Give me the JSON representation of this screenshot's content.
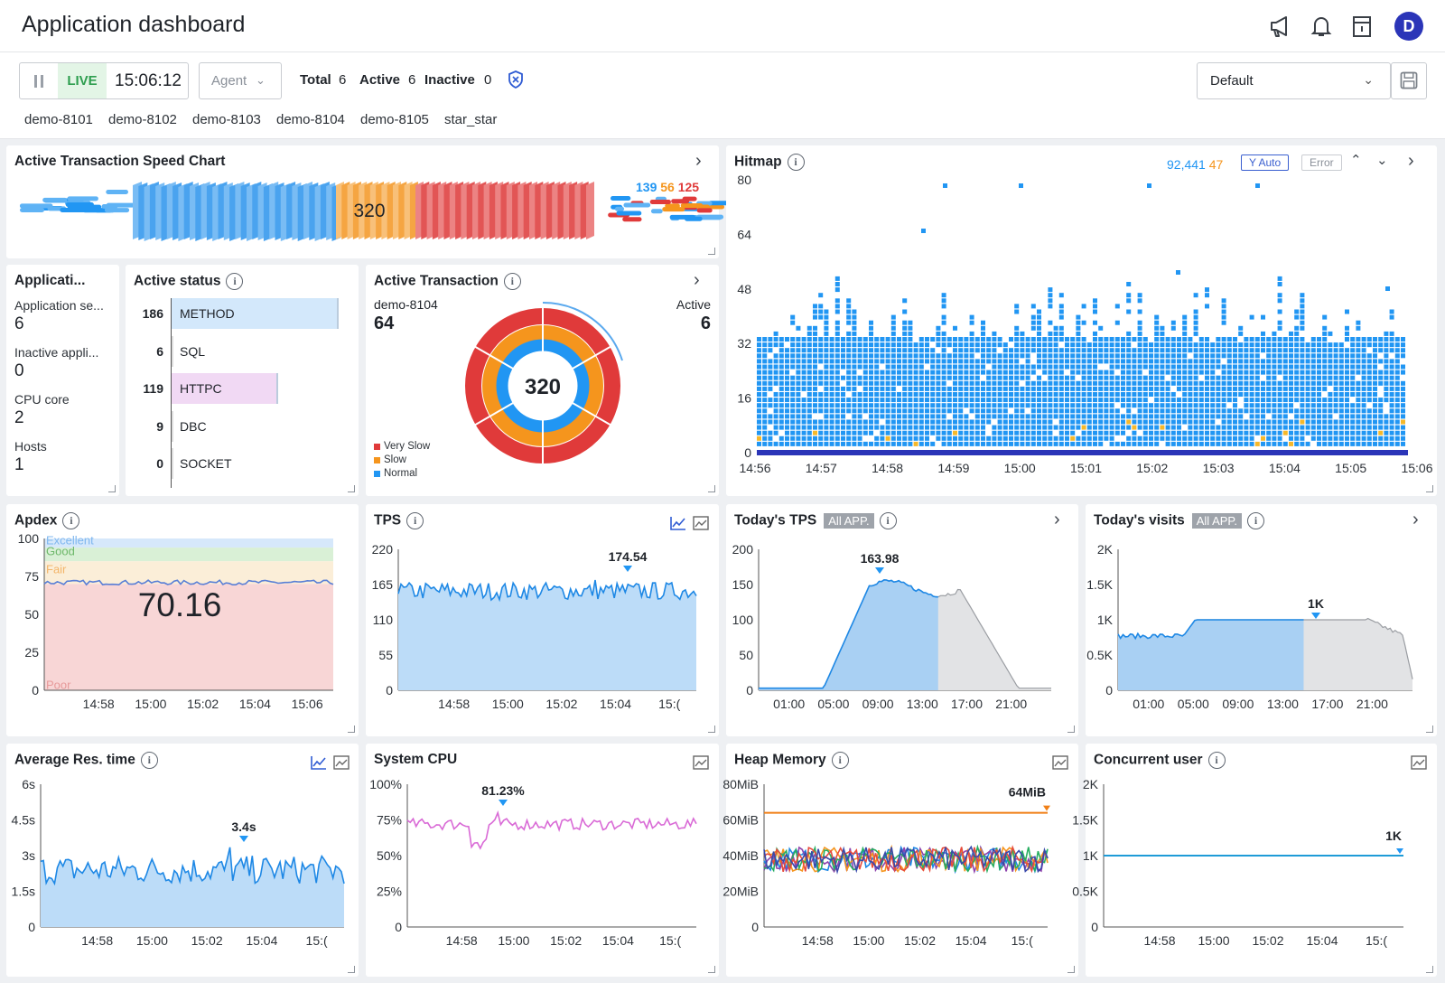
{
  "header": {
    "title": "Application dashboard",
    "avatar_letter": "D"
  },
  "toolbar": {
    "live_label": "LIVE",
    "time": "15:06:12",
    "agent_placeholder": "Agent",
    "total_label": "Total",
    "total": "6",
    "active_label": "Active",
    "active": "6",
    "inactive_label": "Inactive",
    "inactive": "0",
    "agents": [
      "demo-8101",
      "demo-8102",
      "demo-8103",
      "demo-8104",
      "demo-8105",
      "star_star"
    ],
    "preset": "Default"
  },
  "speed": {
    "title": "Active Transaction Speed Chart",
    "center": "320",
    "normal": "139",
    "slow": "56",
    "very_slow": "125"
  },
  "hitmap": {
    "title": "Hitmap",
    "count": "92,441",
    "error_count": "47",
    "yauto": "Y Auto",
    "error": "Error",
    "y_ticks": [
      "80",
      "64",
      "48",
      "32",
      "16",
      "0"
    ],
    "x_ticks": [
      "14:56",
      "14:57",
      "14:58",
      "14:59",
      "15:00",
      "15:01",
      "15:02",
      "15:03",
      "15:04",
      "15:05",
      "15:06"
    ]
  },
  "appinfo": {
    "title": "Applicati...",
    "items": [
      {
        "label": "Application se...",
        "value": "6"
      },
      {
        "label": "Inactive appli...",
        "value": "0"
      },
      {
        "label": "CPU core",
        "value": "2"
      },
      {
        "label": "Hosts",
        "value": "1"
      }
    ]
  },
  "status": {
    "title": "Active status",
    "rows": [
      {
        "value": "186",
        "label": "METHOD",
        "frac": 1.0,
        "color": "#d3e8fb"
      },
      {
        "value": "6",
        "label": "SQL",
        "frac": 0.0,
        "color": "#d9ecd8"
      },
      {
        "value": "119",
        "label": "HTTPC",
        "frac": 0.64,
        "color": "#f1d9f4"
      },
      {
        "value": "9",
        "label": "DBC",
        "frac": 0.0,
        "color": "#f9e3cf"
      },
      {
        "value": "0",
        "label": "SOCKET",
        "frac": 0.0,
        "color": "#eee"
      }
    ]
  },
  "activetx": {
    "title": "Active Transaction",
    "agent": "demo-8104",
    "agent_value": "64",
    "active_label": "Active",
    "active_value": "6",
    "center": "320",
    "legend": [
      {
        "label": "Very Slow",
        "color": "#e03a3a"
      },
      {
        "label": "Slow",
        "color": "#f5951d"
      },
      {
        "label": "Normal",
        "color": "#2196f3"
      }
    ]
  },
  "apdex": {
    "title": "Apdex",
    "value": "70.16",
    "bands": [
      "Excellent",
      "Good",
      "Fair",
      "Poor"
    ],
    "y_ticks": [
      "100",
      "75",
      "50",
      "25",
      "0"
    ],
    "x_ticks": [
      "14:58",
      "15:00",
      "15:02",
      "15:04",
      "15:06"
    ]
  },
  "tps": {
    "title": "TPS",
    "peak": "174.54",
    "y_ticks": [
      "220",
      "165",
      "110",
      "55",
      "0"
    ],
    "x_ticks": [
      "14:58",
      "15:00",
      "15:02",
      "15:04",
      "15:("
    ]
  },
  "todaytps": {
    "title": "Today's TPS",
    "tag": "All APP.",
    "peak": "163.98",
    "y_ticks": [
      "200",
      "150",
      "100",
      "50",
      "0"
    ],
    "x_ticks": [
      "01:00",
      "05:00",
      "09:00",
      "13:00",
      "17:00",
      "21:00"
    ]
  },
  "visits": {
    "title": "Today's visits",
    "tag": "All APP.",
    "peak": "1K",
    "y_ticks": [
      "2K",
      "1.5K",
      "1K",
      "0.5K",
      "0"
    ],
    "x_ticks": [
      "01:00",
      "05:00",
      "09:00",
      "13:00",
      "17:00",
      "21:00"
    ]
  },
  "resp": {
    "title": "Average Res. time",
    "peak": "3.4s",
    "y_ticks": [
      "6s",
      "4.5s",
      "3s",
      "1.5s",
      "0"
    ],
    "x_ticks": [
      "14:58",
      "15:00",
      "15:02",
      "15:04",
      "15:("
    ]
  },
  "cpu": {
    "title": "System CPU",
    "peak": "81.23%",
    "y_ticks": [
      "100%",
      "75%",
      "50%",
      "25%",
      "0"
    ],
    "x_ticks": [
      "14:58",
      "15:00",
      "15:02",
      "15:04",
      "15:("
    ]
  },
  "heap": {
    "title": "Heap Memory",
    "peak": "64MiB",
    "y_ticks": [
      "80MiB",
      "60MiB",
      "40MiB",
      "20MiB",
      "0"
    ],
    "x_ticks": [
      "14:58",
      "15:00",
      "15:02",
      "15:04",
      "15:("
    ]
  },
  "users": {
    "title": "Concurrent user",
    "peak": "1K",
    "y_ticks": [
      "2K",
      "1.5K",
      "1K",
      "0.5K",
      "0"
    ],
    "x_ticks": [
      "14:58",
      "15:00",
      "15:02",
      "15:04",
      "15:("
    ]
  },
  "colors": {
    "normal": "#2196f3",
    "slow": "#f5951d",
    "very_slow": "#e03a3a",
    "cpu": "#d96ad6",
    "heap_max": "#f07f16"
  }
}
